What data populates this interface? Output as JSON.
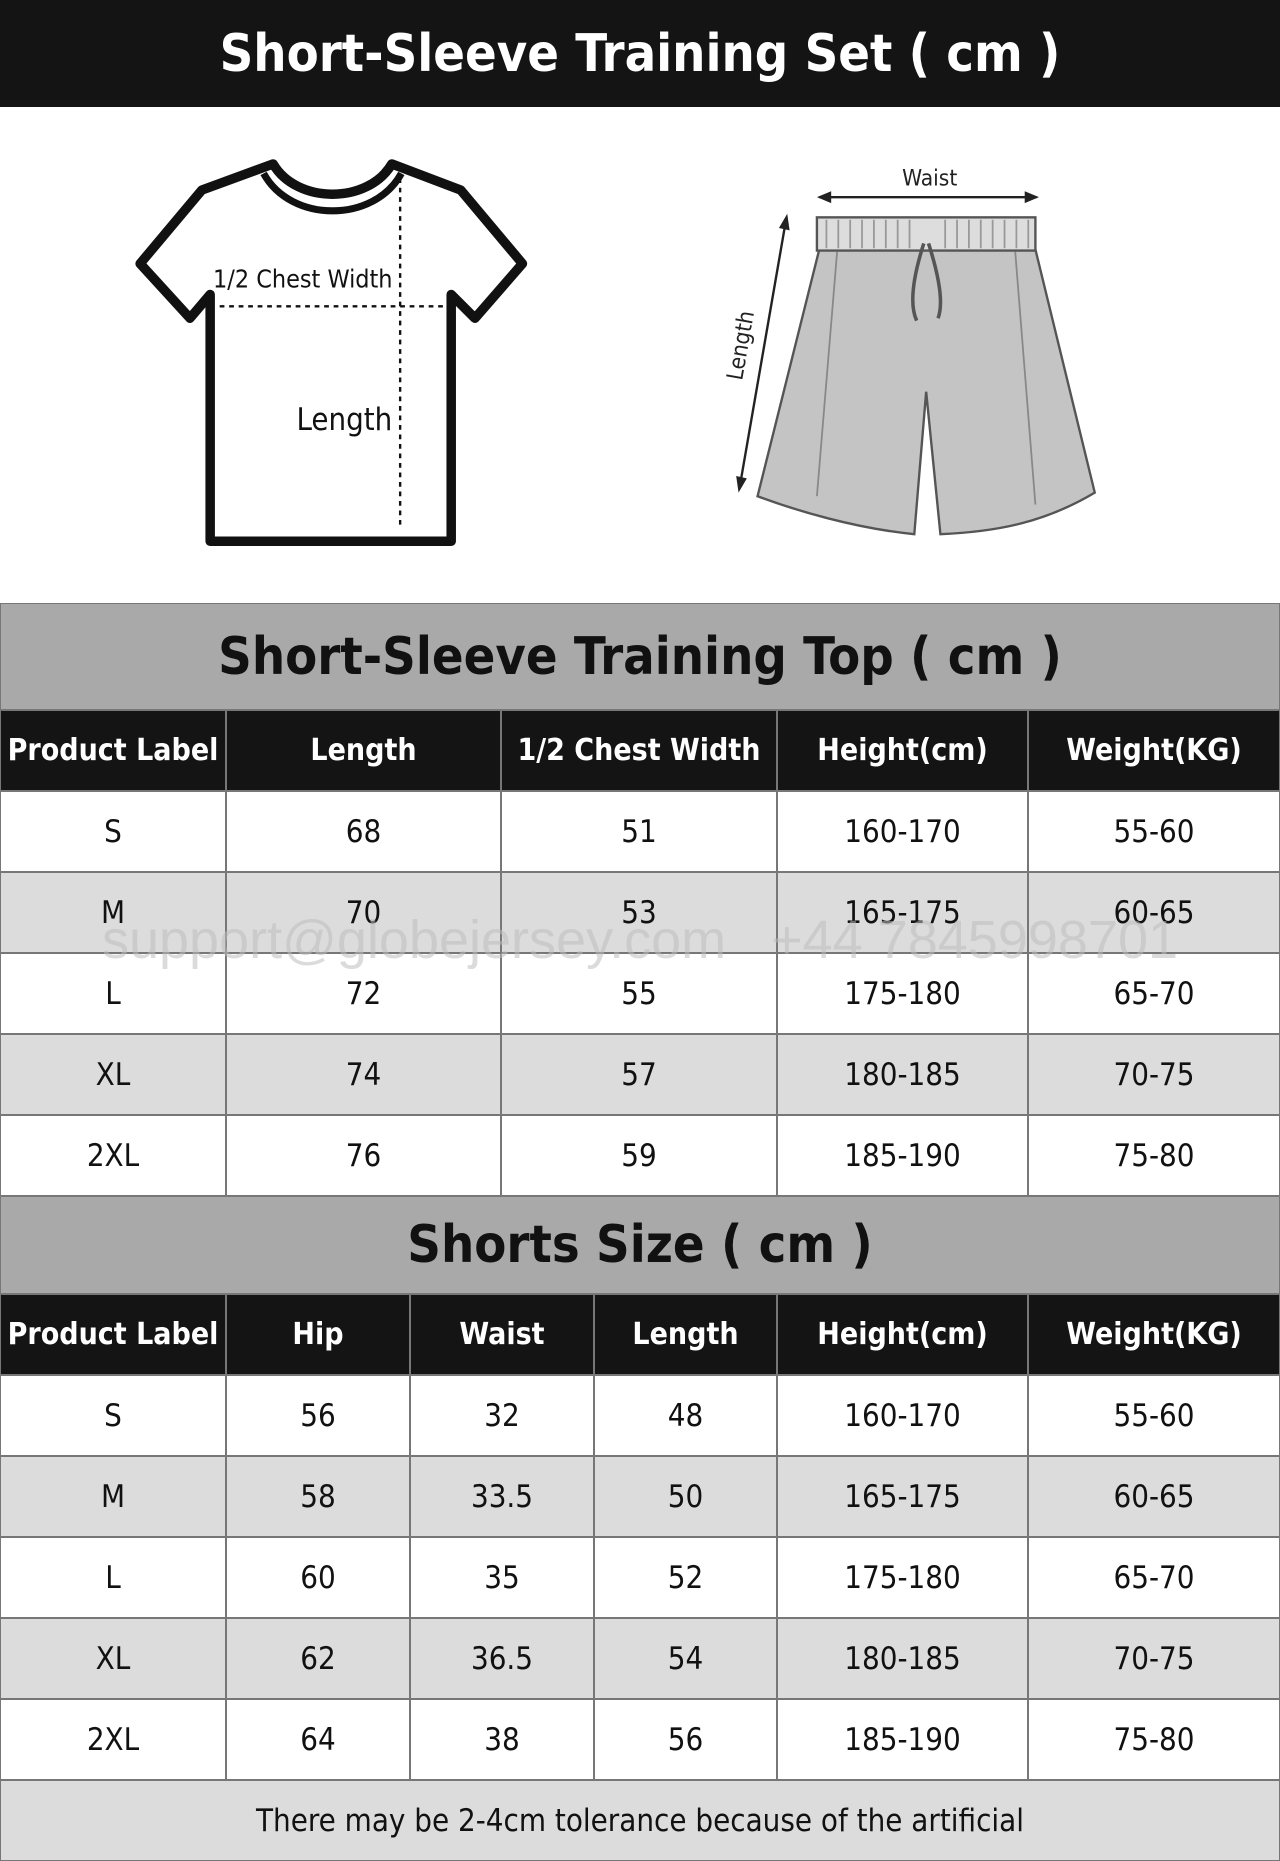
{
  "header": {
    "title": "Short-Sleeve Training Set ( cm )"
  },
  "illustration": {
    "shirt_labels": [
      "1/2 Chest Width",
      "Length"
    ],
    "shorts_labels": [
      "Waist",
      "Length"
    ]
  },
  "top_table": {
    "title": "Short-Sleeve Training Top ( cm )",
    "columns": [
      "Product Label",
      "Length",
      "1/2 Chest Width",
      "Height(cm)",
      "Weight(KG)"
    ],
    "rows": [
      [
        "S",
        "68",
        "51",
        "160-170",
        "55-60"
      ],
      [
        "M",
        "70",
        "53",
        "165-175",
        "60-65"
      ],
      [
        "L",
        "72",
        "55",
        "175-180",
        "65-70"
      ],
      [
        "XL",
        "74",
        "57",
        "180-185",
        "70-75"
      ],
      [
        "2XL",
        "76",
        "59",
        "185-190",
        "75-80"
      ]
    ]
  },
  "shorts_table": {
    "title": "Shorts Size ( cm )",
    "columns": [
      "Product Label",
      "Hip",
      "Waist",
      "Length",
      "Height(cm)",
      "Weight(KG)"
    ],
    "rows": [
      [
        "S",
        "56",
        "32",
        "48",
        "160-170",
        "55-60"
      ],
      [
        "M",
        "58",
        "33.5",
        "50",
        "165-175",
        "60-65"
      ],
      [
        "L",
        "60",
        "35",
        "52",
        "175-180",
        "65-70"
      ],
      [
        "XL",
        "62",
        "36.5",
        "54",
        "180-185",
        "70-75"
      ],
      [
        "2XL",
        "64",
        "38",
        "56",
        "185-190",
        "75-80"
      ]
    ]
  },
  "watermark": "support@globejersey.com   +44 7845998701",
  "footer": "There may be 2-4cm tolerance because of the artificial"
}
